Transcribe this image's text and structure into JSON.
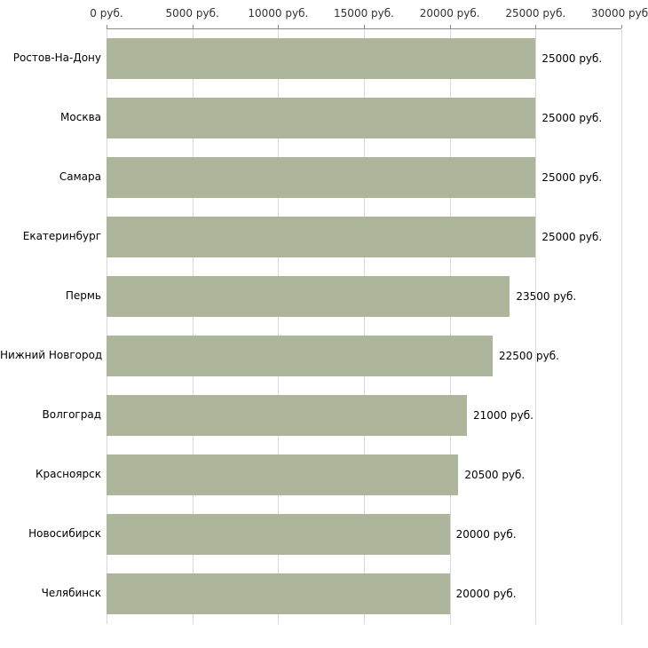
{
  "chart_data": {
    "type": "bar",
    "orientation": "horizontal",
    "title": "",
    "xlabel": "",
    "ylabel": "",
    "categories": [
      "Ростов-На-Дону",
      "Москва",
      "Самара",
      "Екатеринбург",
      "Пермь",
      "Нижний Новгород",
      "Волгоград",
      "Красноярск",
      "Новосибирск",
      "Челябинск"
    ],
    "values": [
      25000,
      25000,
      25000,
      25000,
      23500,
      22500,
      21000,
      20500,
      20000,
      20000
    ],
    "value_labels": [
      "25000 руб.",
      "25000 руб.",
      "25000 руб.",
      "25000 руб.",
      "23500 руб.",
      "22500 руб.",
      "21000 руб.",
      "20500 руб.",
      "20000 руб.",
      "20000 руб."
    ],
    "xlim": [
      0,
      30000
    ],
    "xticks": [
      0,
      5000,
      10000,
      15000,
      20000,
      25000,
      30000
    ],
    "xtick_labels": [
      "0 руб.",
      "5000 руб.",
      "10000 руб.",
      "15000 руб.",
      "20000 руб.",
      "25000 руб.",
      "30000 руб."
    ],
    "bar_color": "#adb69b",
    "grid": true,
    "gridline_color": "#d9d9d9",
    "axis_color": "#8c8c8c",
    "axis_position": "top",
    "legend": "none",
    "background_color": "#ffffff"
  }
}
